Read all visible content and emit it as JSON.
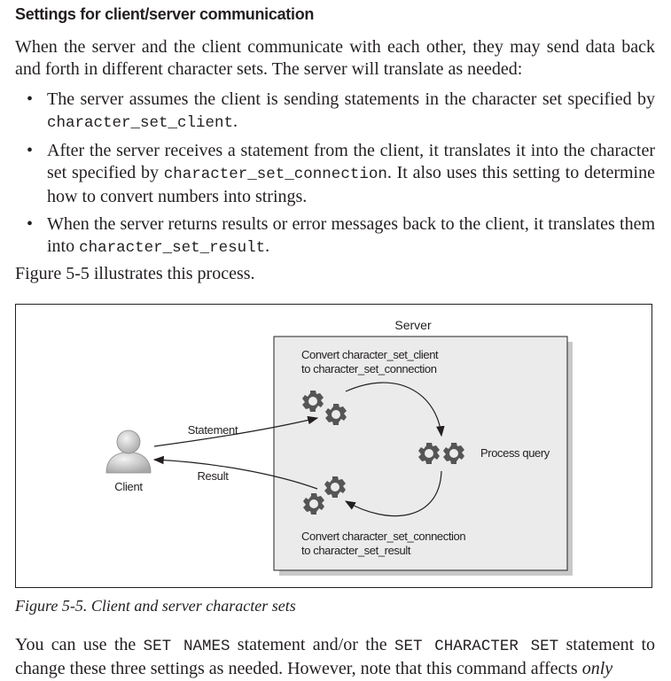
{
  "section": {
    "heading": "Settings for client/server communication",
    "intro": "When the server and the client communicate with each other, they may send data back and forth in different character sets. The server will translate as needed:",
    "bullets": [
      {
        "pre": "The server assumes the client is sending statements in the character set specified by ",
        "code": "character_set_client",
        "post": "."
      },
      {
        "pre": "After the server receives a statement from the client, it translates it into the character set specified by ",
        "code": "character_set_connection",
        "post": ". It also uses this setting to determine how to convert numbers into strings."
      },
      {
        "pre": "When the server returns results or error messages back to the client, it translates them into ",
        "code": "character_set_result",
        "post": "."
      }
    ],
    "figure_ref": "Figure 5-5 illustrates this process."
  },
  "figure": {
    "server_label": "Server",
    "convert_top_line1": "Convert character_set_client",
    "convert_top_line2": "to character_set_connection",
    "process_query": "Process query",
    "convert_bottom_line1": "Convert character_set_connection",
    "convert_bottom_line2": "to character_set_result",
    "statement": "Statement",
    "result": "Result",
    "client": "Client",
    "caption": "Figure 5-5. Client and server character sets",
    "icons": [
      "user-icon",
      "gear-icon"
    ],
    "colors": {
      "server_box_fill": "#ebebeb",
      "gear": "#555555"
    }
  },
  "closing": {
    "p1": "You can use the ",
    "c1": "SET NAMES",
    "p2": " statement and/or the ",
    "c2": "SET CHARACTER SET",
    "p3": " statement to change these three settings as needed. However, note that this command affects ",
    "em": "only"
  }
}
